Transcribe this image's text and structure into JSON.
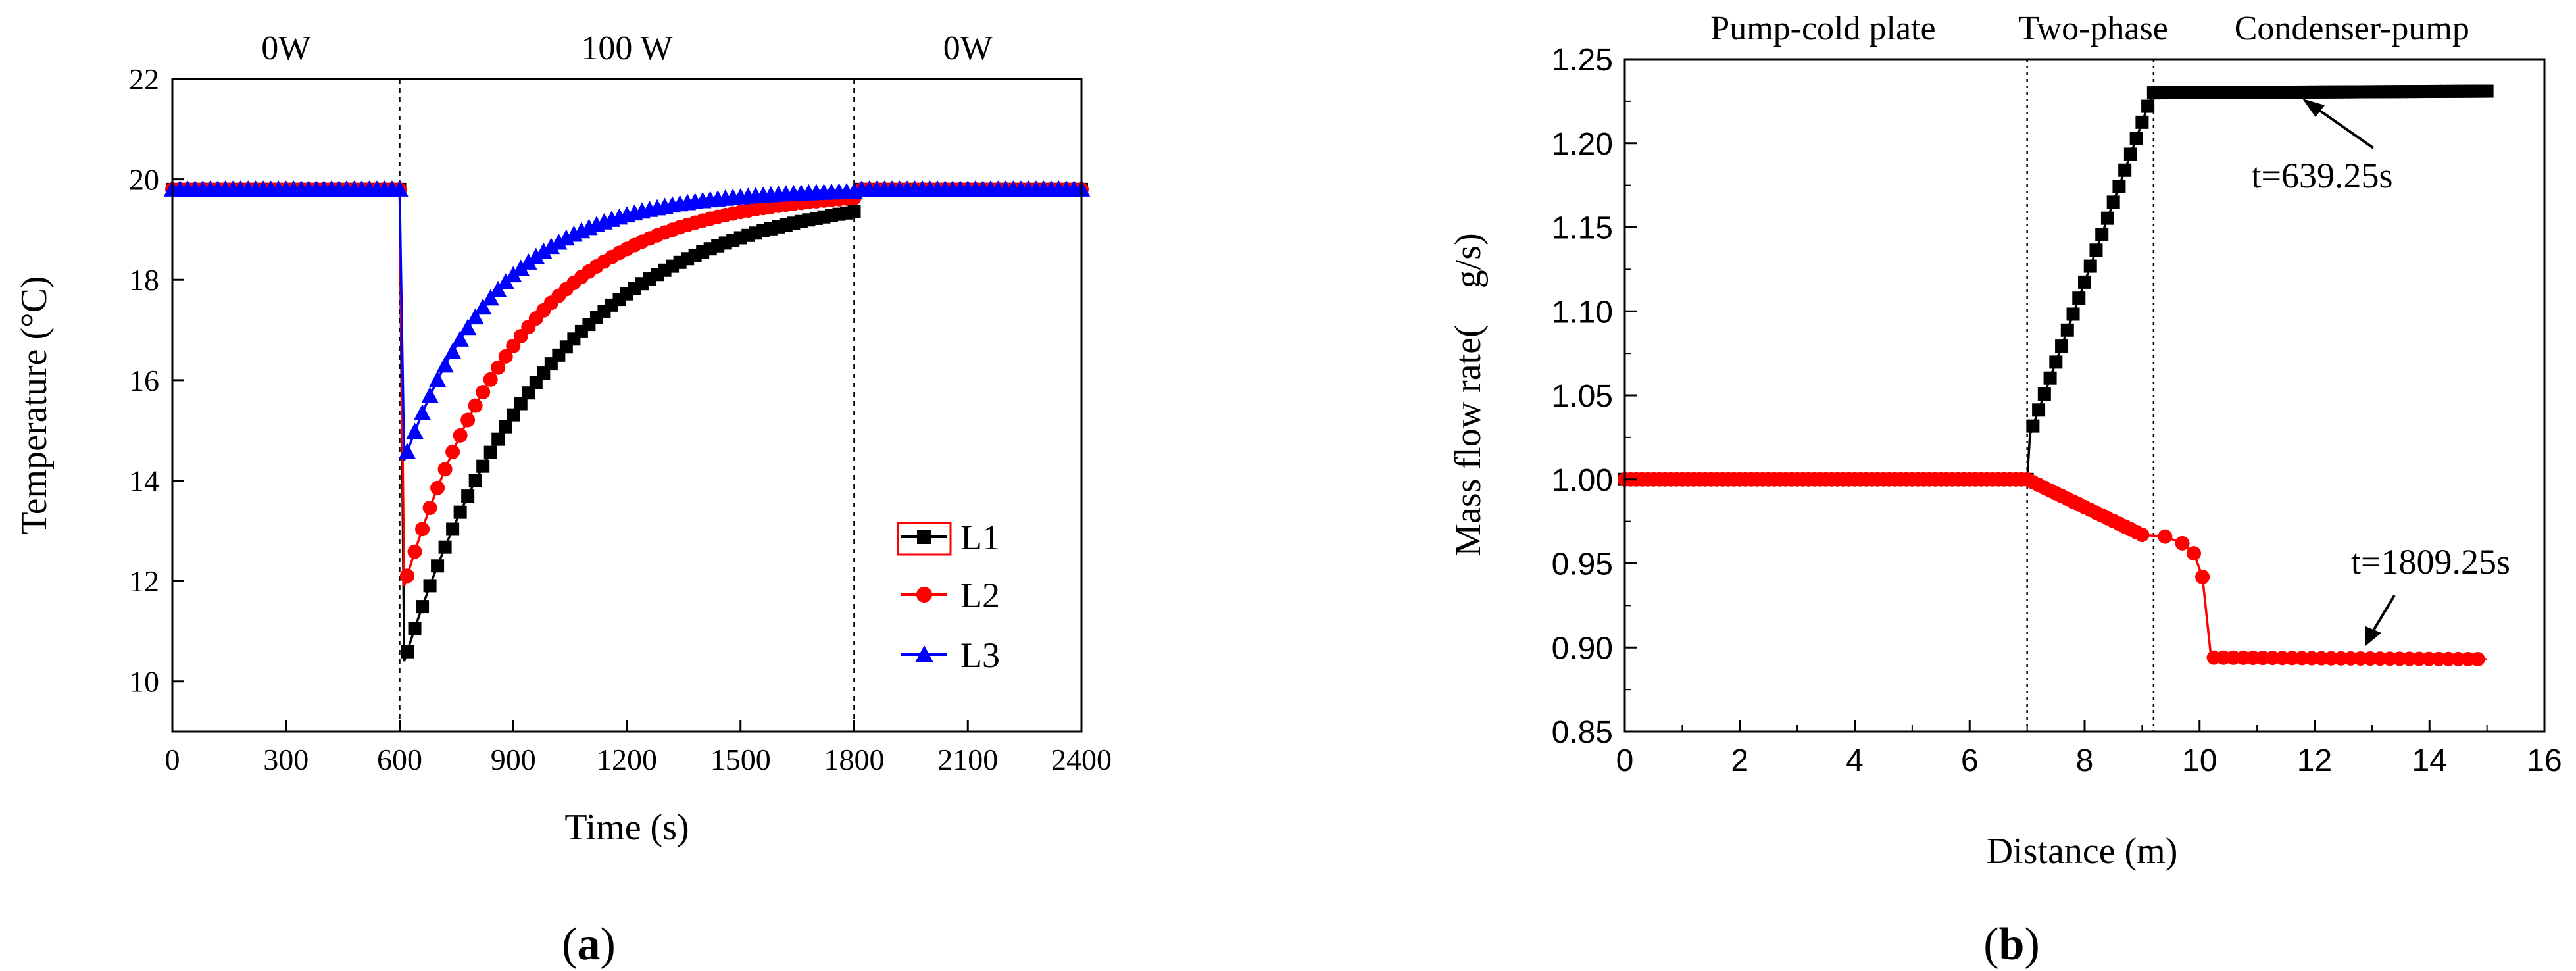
{
  "chart_data": [
    {
      "type": "line",
      "panel_label": "a",
      "xlabel": "Time (s)",
      "ylabel": "Temperature (°C)",
      "xlim": [
        0,
        2400
      ],
      "ylim": [
        9,
        22
      ],
      "xticks": [
        0,
        300,
        600,
        900,
        1200,
        1500,
        1800,
        2100,
        2400
      ],
      "yticks": [
        10,
        12,
        14,
        16,
        18,
        20,
        22
      ],
      "legend_position": "lower-right",
      "region_lines": [
        600,
        1800
      ],
      "region_labels": [
        "0W",
        "100 W",
        "0W"
      ],
      "series": [
        {
          "name": "L1",
          "marker": "square",
          "color": "#000000",
          "x": [
            0,
            600,
            605,
            615,
            2400
          ],
          "y": [
            19.8,
            19.8,
            12.5,
            10.4,
            19.8
          ],
          "min": 10.4,
          "tau": 390
        },
        {
          "name": "L2",
          "marker": "circle",
          "color": "#ff0000",
          "x": [
            0,
            600,
            605,
            615,
            2400
          ],
          "y": [
            19.8,
            19.8,
            13.5,
            11.9,
            19.8
          ],
          "min": 11.9,
          "tau": 310
        },
        {
          "name": "L3",
          "marker": "triangle",
          "color": "#0000ff",
          "x": [
            0,
            600,
            605,
            615,
            2400
          ],
          "y": [
            19.8,
            19.8,
            15.5,
            14.4,
            19.8
          ],
          "min": 14.4,
          "tau": 250
        }
      ]
    },
    {
      "type": "line",
      "panel_label": "b",
      "xlabel": "Distance (m)",
      "ylabel": "Mass flow rate(　g/s)",
      "xlim": [
        0,
        16
      ],
      "ylim": [
        0.85,
        1.25
      ],
      "xticks": [
        0,
        2,
        4,
        6,
        8,
        10,
        12,
        14,
        16
      ],
      "yticks": [
        "0.85",
        "0.90",
        "0.95",
        "1.00",
        "1.05",
        "1.10",
        "1.15",
        "1.20",
        "1.25"
      ],
      "region_lines": [
        7.0,
        9.2
      ],
      "region_labels": [
        "Pump-cold plate",
        "Two-phase",
        "Condenser-pump"
      ],
      "annotations": [
        "t=639.25s",
        "t=1809.25s"
      ],
      "series": [
        {
          "name": "t=639.25s",
          "marker": "square",
          "color": "#000000",
          "x": [
            0,
            7.0,
            7.05,
            9.1,
            9.2,
            15.0
          ],
          "y": [
            1.0,
            1.0,
            1.027,
            1.222,
            1.23,
            1.231
          ]
        },
        {
          "name": "t=1809.25s",
          "marker": "circle",
          "color": "#ff0000",
          "x": [
            0,
            7.0,
            9.0,
            9.4,
            9.7,
            9.9,
            10.05,
            10.2,
            15.0
          ],
          "y": [
            1.0,
            1.0,
            0.967,
            0.966,
            0.962,
            0.956,
            0.942,
            0.894,
            0.893
          ]
        }
      ]
    }
  ]
}
